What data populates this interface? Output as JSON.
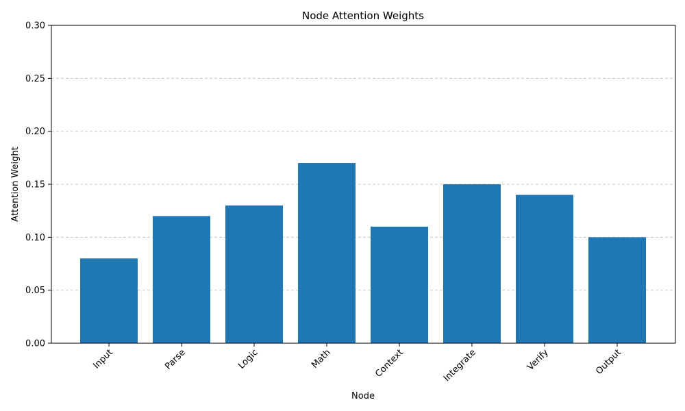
{
  "chart_data": {
    "type": "bar",
    "title": "Node Attention Weights",
    "xlabel": "Node",
    "ylabel": "Attention Weight",
    "categories": [
      "Input",
      "Parse",
      "Logic",
      "Math",
      "Context",
      "Integrate",
      "Verify",
      "Output"
    ],
    "values": [
      0.08,
      0.12,
      0.13,
      0.17,
      0.11,
      0.15,
      0.14,
      0.1
    ],
    "ylim": [
      0,
      0.3
    ],
    "yticks": [
      "0.00",
      "0.05",
      "0.10",
      "0.15",
      "0.20",
      "0.25",
      "0.30"
    ],
    "ytick_values": [
      0.0,
      0.05,
      0.1,
      0.15,
      0.2,
      0.25,
      0.3
    ],
    "grid": "horizontal-dashed",
    "bar_color": "#1f77b4",
    "grid_color": "#c8c8c8",
    "xtick_rotation_deg": 45
  }
}
